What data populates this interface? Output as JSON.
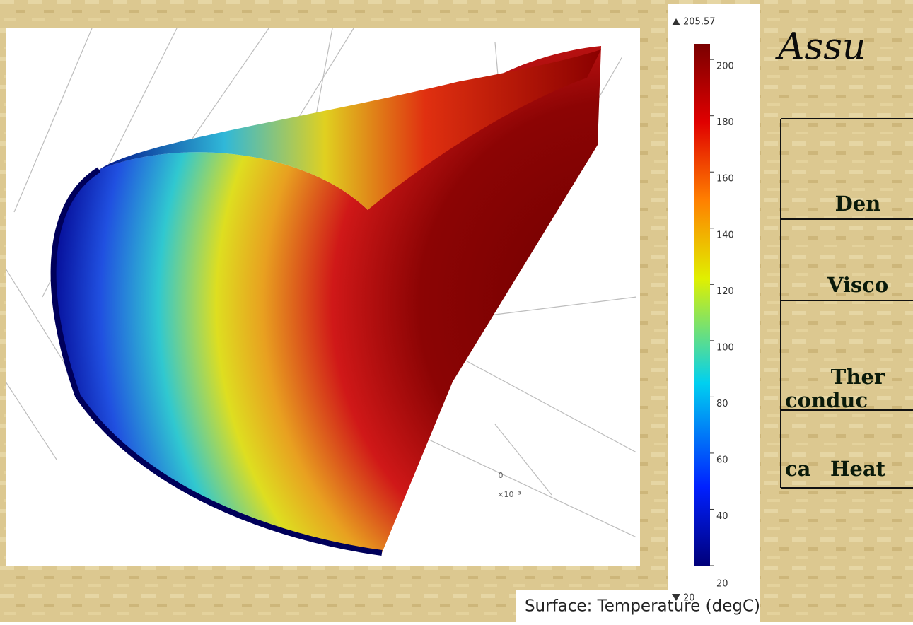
{
  "plot": {
    "axis_zero": "0",
    "axis_exponent": "×10⁻³"
  },
  "colorbar": {
    "max": 205.57,
    "min": 20,
    "ticks": [
      20,
      40,
      60,
      80,
      100,
      120,
      140,
      160,
      180,
      200
    ],
    "caption": "Surface: Temperature (degC)"
  },
  "slide": {
    "heading": "Assu",
    "table": {
      "rows": [
        "Den",
        "Visco",
        "Ther conduc",
        "Heat ca"
      ]
    }
  }
}
